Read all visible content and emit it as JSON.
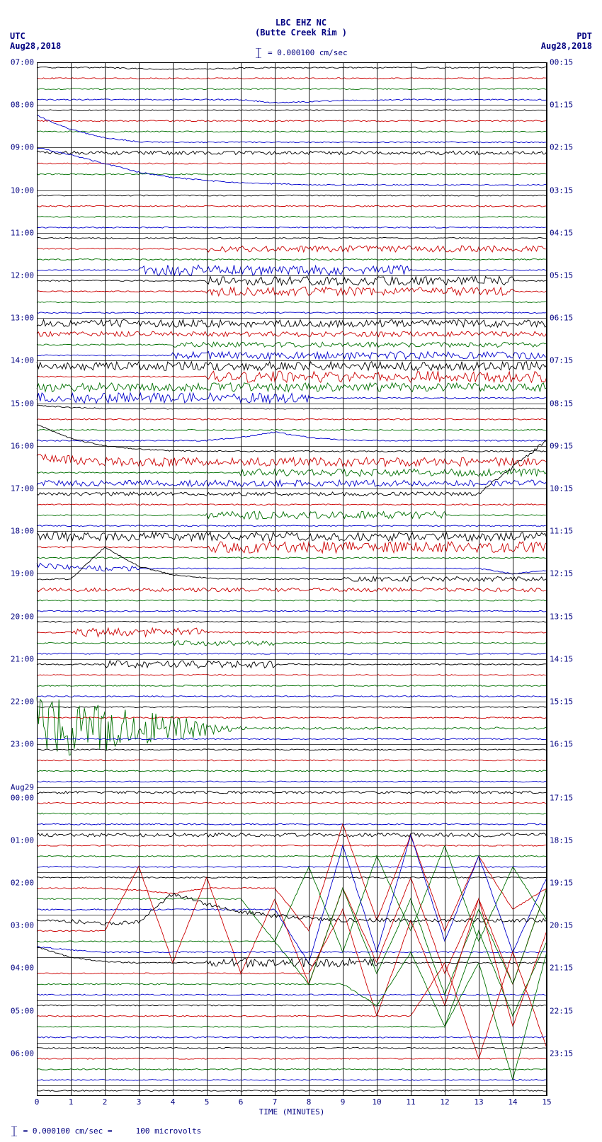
{
  "header": {
    "station": "LBC EHZ NC",
    "location": "(Butte Creek Rim )",
    "scale_text": "= 0.000100 cm/sec"
  },
  "timezones": {
    "left": "UTC",
    "right": "PDT"
  },
  "dates": {
    "left": "Aug28,2018",
    "right": "Aug28,2018"
  },
  "footer": {
    "scale": "= 0.000100 cm/sec =",
    "microvolts": "100 microvolts"
  },
  "x_axis": {
    "title": "TIME (MINUTES)",
    "ticks": [
      "0",
      "1",
      "2",
      "3",
      "4",
      "5",
      "6",
      "7",
      "8",
      "9",
      "10",
      "11",
      "12",
      "13",
      "14",
      "15"
    ]
  },
  "left_labels": [
    "07:00",
    "",
    "",
    "",
    "08:00",
    "",
    "",
    "",
    "09:00",
    "",
    "",
    "",
    "10:00",
    "",
    "",
    "",
    "11:00",
    "",
    "",
    "",
    "12:00",
    "",
    "",
    "",
    "13:00",
    "",
    "",
    "",
    "14:00",
    "",
    "",
    "",
    "15:00",
    "",
    "",
    "",
    "16:00",
    "",
    "",
    "",
    "17:00",
    "",
    "",
    "",
    "18:00",
    "",
    "",
    "",
    "19:00",
    "",
    "",
    "",
    "20:00",
    "",
    "",
    "",
    "21:00",
    "",
    "",
    "",
    "22:00",
    "",
    "",
    "",
    "23:00",
    "",
    "",
    "",
    "Aug29",
    "00:00",
    "",
    "",
    "",
    "01:00",
    "",
    "",
    "",
    "02:00",
    "",
    "",
    "",
    "03:00",
    "",
    "",
    "",
    "04:00",
    "",
    "",
    "",
    "05:00",
    "",
    "",
    "",
    "06:00",
    "",
    "",
    ""
  ],
  "right_labels": [
    "00:15",
    "",
    "",
    "",
    "01:15",
    "",
    "",
    "",
    "02:15",
    "",
    "",
    "",
    "03:15",
    "",
    "",
    "",
    "04:15",
    "",
    "",
    "",
    "05:15",
    "",
    "",
    "",
    "06:15",
    "",
    "",
    "",
    "07:15",
    "",
    "",
    "",
    "08:15",
    "",
    "",
    "",
    "09:15",
    "",
    "",
    "",
    "10:15",
    "",
    "",
    "",
    "11:15",
    "",
    "",
    "",
    "12:15",
    "",
    "",
    "",
    "13:15",
    "",
    "",
    "",
    "14:15",
    "",
    "",
    "",
    "15:15",
    "",
    "",
    "",
    "16:15",
    "",
    "",
    "",
    "",
    "17:15",
    "",
    "",
    "",
    "18:15",
    "",
    "",
    "",
    "19:15",
    "",
    "",
    "",
    "20:15",
    "",
    "",
    "",
    "21:15",
    "",
    "",
    "",
    "22:15",
    "",
    "",
    "",
    "23:15",
    "",
    "",
    ""
  ],
  "n_traces": 97,
  "trace_colors": [
    "#000000",
    "#cc0000",
    "#007000",
    "#0000cc"
  ],
  "background_color": "#ffffff",
  "grid_color": "#000000",
  "title_color": "#000080",
  "label_color": "#000080",
  "traces": [
    {
      "i": 0,
      "amp": 0.2,
      "noise": 0.05,
      "drift": [
        0,
        0,
        0,
        0.1,
        0.15,
        0.12,
        0.05,
        0,
        0,
        0,
        0,
        0,
        0,
        0,
        0,
        0
      ]
    },
    {
      "i": 1,
      "amp": 0.1,
      "noise": 0.05
    },
    {
      "i": 2,
      "amp": 0.1,
      "noise": 0.05
    },
    {
      "i": 3,
      "amp": 0.1,
      "noise": 0.05,
      "drift": [
        0,
        0,
        0,
        0,
        0,
        0,
        0,
        0.3,
        0.2,
        0.1,
        0.05,
        0,
        0,
        0,
        0,
        0
      ]
    },
    {
      "i": 4,
      "amp": 0.1,
      "noise": 0.05
    },
    {
      "i": 5,
      "amp": 0.1,
      "noise": 0.05
    },
    {
      "i": 6,
      "amp": 0.1,
      "noise": 0.05
    },
    {
      "i": 7,
      "amp": 0.1,
      "noise": 0.05,
      "drift": [
        -2.5,
        -1.2,
        -0.4,
        -0.05,
        0,
        0,
        0,
        0,
        0,
        0,
        0,
        0,
        0,
        0,
        0,
        0
      ]
    },
    {
      "i": 8,
      "amp": 0.3,
      "noise": 0.15
    },
    {
      "i": 9,
      "amp": 0.1,
      "noise": 0.05
    },
    {
      "i": 10,
      "amp": 0.1,
      "noise": 0.05
    },
    {
      "i": 11,
      "amp": 0.1,
      "noise": 0.05,
      "drift": [
        -3.5,
        -2.8,
        -2.0,
        -1.2,
        -0.7,
        -0.4,
        -0.2,
        -0.1,
        0,
        0,
        0,
        0,
        0,
        0,
        0,
        0
      ]
    },
    {
      "i": 12,
      "amp": 0.1,
      "noise": 0.05
    },
    {
      "i": 13,
      "amp": 0.1,
      "noise": 0.05
    },
    {
      "i": 14,
      "amp": 0.1,
      "noise": 0.05
    },
    {
      "i": 15,
      "amp": 0.1,
      "noise": 0.05
    },
    {
      "i": 16,
      "amp": 0.1,
      "noise": 0.05
    },
    {
      "i": 17,
      "amp": 0.3,
      "noise": 0.25,
      "seg": [
        5,
        15
      ]
    },
    {
      "i": 18,
      "amp": 0.1,
      "noise": 0.05
    },
    {
      "i": 19,
      "amp": 0.5,
      "noise": 0.4,
      "seg": [
        3,
        11
      ]
    },
    {
      "i": 20,
      "amp": 0.4,
      "noise": 0.35,
      "seg": [
        5,
        14
      ]
    },
    {
      "i": 21,
      "amp": 0.4,
      "noise": 0.35,
      "seg": [
        5,
        14
      ]
    },
    {
      "i": 22,
      "amp": 0.1,
      "noise": 0.05
    },
    {
      "i": 23,
      "amp": 0.1,
      "noise": 0.05
    },
    {
      "i": 24,
      "amp": 0.4,
      "noise": 0.3,
      "seg": [
        0,
        15
      ]
    },
    {
      "i": 25,
      "amp": 0.3,
      "noise": 0.2,
      "seg": [
        0,
        15
      ]
    },
    {
      "i": 26,
      "amp": 0.3,
      "noise": 0.2,
      "seg": [
        4,
        15
      ]
    },
    {
      "i": 27,
      "amp": 0.4,
      "noise": 0.3,
      "seg": [
        4,
        15
      ]
    },
    {
      "i": 28,
      "amp": 0.4,
      "noise": 0.35,
      "seg": [
        0,
        15
      ]
    },
    {
      "i": 29,
      "amp": 0.5,
      "noise": 0.45,
      "seg": [
        5,
        15
      ]
    },
    {
      "i": 30,
      "amp": 0.4,
      "noise": 0.35,
      "seg": [
        0,
        15
      ]
    },
    {
      "i": 31,
      "amp": 0.5,
      "noise": 0.4,
      "seg": [
        0,
        8
      ]
    },
    {
      "i": 32,
      "amp": 0.1,
      "noise": 0.05,
      "drift": [
        -0.3,
        -0.1,
        0,
        0,
        0,
        0,
        0,
        0,
        0,
        0,
        0,
        0,
        0,
        0,
        0,
        0
      ]
    },
    {
      "i": 33,
      "amp": 0.1,
      "noise": 0.05
    },
    {
      "i": 34,
      "amp": 0.1,
      "noise": 0.05
    },
    {
      "i": 35,
      "amp": 0.1,
      "noise": 0.05,
      "drift": [
        0,
        0,
        0,
        0,
        0,
        0,
        -0.3,
        -0.8,
        -0.3,
        -0.05,
        0,
        0,
        0,
        0,
        0,
        0
      ]
    },
    {
      "i": 36,
      "amp": 0.1,
      "noise": 0.05,
      "drift": [
        -2.5,
        -1.2,
        -0.5,
        -0.2,
        -0.05,
        0,
        0,
        0,
        0,
        0,
        0,
        0,
        0,
        0,
        0,
        0
      ]
    },
    {
      "i": 37,
      "amp": 0.4,
      "noise": 0.35,
      "seg": [
        0,
        15
      ],
      "drift": [
        -0.5,
        -0.2,
        0,
        0,
        0,
        0,
        0,
        0,
        0,
        0,
        0,
        0,
        0,
        0,
        0,
        0
      ]
    },
    {
      "i": 38,
      "amp": 0.4,
      "noise": 0.3,
      "seg": [
        6,
        15
      ]
    },
    {
      "i": 39,
      "amp": 0.3,
      "noise": 0.25,
      "seg": [
        0,
        15
      ]
    },
    {
      "i": 40,
      "amp": 0.2,
      "noise": 0.15,
      "drift": [
        0,
        0,
        0,
        0,
        0,
        0,
        0,
        0,
        0,
        0,
        0,
        0,
        0,
        0,
        -2.5,
        -5
      ]
    },
    {
      "i": 41,
      "amp": 0.1,
      "noise": 0.05
    },
    {
      "i": 42,
      "amp": 0.4,
      "noise": 0.3,
      "seg": [
        5,
        12
      ]
    },
    {
      "i": 43,
      "amp": 0.1,
      "noise": 0.05
    },
    {
      "i": 44,
      "amp": 0.4,
      "noise": 0.35,
      "seg": [
        0,
        15
      ]
    },
    {
      "i": 45,
      "amp": 0.5,
      "noise": 0.45,
      "seg": [
        5,
        15
      ]
    },
    {
      "i": 46,
      "amp": 0.1,
      "noise": 0.05
    },
    {
      "i": 47,
      "amp": 0.3,
      "noise": 0.2,
      "seg": [
        0,
        3
      ],
      "drift": [
        -0.3,
        -0.1,
        0,
        0,
        0,
        0,
        0,
        0,
        0,
        0,
        0,
        0,
        0,
        0,
        0.5,
        0.2
      ]
    },
    {
      "i": 48,
      "amp": 0.3,
      "noise": 0.2,
      "seg": [
        9,
        15
      ],
      "drift": [
        0,
        0,
        -3,
        -1.2,
        -0.4,
        -0.1,
        0,
        0,
        0,
        0,
        0,
        0,
        0,
        0,
        0,
        0
      ]
    },
    {
      "i": 49,
      "amp": 0.2,
      "noise": 0.15
    },
    {
      "i": 50,
      "amp": 0.1,
      "noise": 0.05
    },
    {
      "i": 51,
      "amp": 0.1,
      "noise": 0.05
    },
    {
      "i": 52,
      "amp": 0.1,
      "noise": 0.05
    },
    {
      "i": 53,
      "amp": 0.4,
      "noise": 0.35,
      "seg": [
        1,
        5
      ]
    },
    {
      "i": 54,
      "amp": 0.3,
      "noise": 0.2,
      "seg": [
        4,
        7
      ]
    },
    {
      "i": 55,
      "amp": 0.1,
      "noise": 0.05
    },
    {
      "i": 56,
      "amp": 0.4,
      "noise": 0.3,
      "seg": [
        2,
        7
      ]
    },
    {
      "i": 57,
      "amp": 0.1,
      "noise": 0.05
    },
    {
      "i": 58,
      "amp": 0.1,
      "noise": 0.05
    },
    {
      "i": 59,
      "amp": 0.1,
      "noise": 0.05
    },
    {
      "i": 60,
      "amp": 0.1,
      "noise": 0.05
    },
    {
      "i": 61,
      "amp": 0.1,
      "noise": 0.05
    },
    {
      "i": 62,
      "amp": 2.0,
      "noise": 1.8,
      "seg": [
        2,
        6
      ],
      "decay": true
    },
    {
      "i": 63,
      "amp": 0.1,
      "noise": 0.05
    },
    {
      "i": 64,
      "amp": 0.1,
      "noise": 0.05
    },
    {
      "i": 65,
      "amp": 0.1,
      "noise": 0.05
    },
    {
      "i": 66,
      "amp": 0.1,
      "noise": 0.05
    },
    {
      "i": 67,
      "amp": 0.1,
      "noise": 0.05
    },
    {
      "i": 68,
      "amp": 0.2,
      "noise": 0.1
    },
    {
      "i": 69,
      "amp": 0.1,
      "noise": 0.05
    },
    {
      "i": 70,
      "amp": 0.1,
      "noise": 0.05
    },
    {
      "i": 71,
      "amp": 0.1,
      "noise": 0.05
    },
    {
      "i": 72,
      "amp": 0.2,
      "noise": 0.15
    },
    {
      "i": 73,
      "amp": 0.1,
      "noise": 0.05
    },
    {
      "i": 74,
      "amp": 0.1,
      "noise": 0.05
    },
    {
      "i": 75,
      "amp": 0.1,
      "noise": 0.05
    },
    {
      "i": 76,
      "amp": 0.1,
      "noise": 0.05
    },
    {
      "i": 77,
      "amp": 0.1,
      "noise": 0.05,
      "bigwave": [
        0,
        0,
        0,
        0.2,
        0.5,
        0,
        0,
        0,
        4,
        -6,
        3,
        -5,
        4,
        -3,
        2,
        0
      ]
    },
    {
      "i": 78,
      "amp": 0.1,
      "noise": 0.05,
      "bigwave": [
        0,
        0,
        0,
        0,
        0,
        0,
        0,
        4,
        -3,
        5,
        -4,
        3,
        -5,
        4,
        -3,
        2
      ]
    },
    {
      "i": 79,
      "amp": 0.1,
      "noise": 0.05,
      "bigwave": [
        0,
        0,
        0,
        0,
        0,
        0,
        0,
        0,
        5,
        -6,
        4,
        -7,
        3,
        -5,
        4,
        -3
      ]
    },
    {
      "i": 80,
      "amp": 0.2,
      "noise": 0.15,
      "drift": [
        0,
        0.1,
        0.3,
        0.2,
        -2.5,
        -1.5,
        -0.8,
        -0.4,
        -0.2,
        0,
        0,
        0,
        0,
        0,
        0,
        0
      ]
    },
    {
      "i": 81,
      "amp": 0.1,
      "noise": 0.05,
      "bigwave": [
        0,
        0,
        0,
        -6,
        3,
        -5,
        4,
        -3,
        5,
        -4,
        3,
        -5,
        4,
        -3,
        5,
        -4
      ]
    },
    {
      "i": 82,
      "amp": 0.1,
      "noise": 0.05,
      "bigwave": [
        0,
        0,
        0,
        0,
        0,
        0,
        0,
        0,
        4,
        -5,
        3,
        -4,
        5,
        -3,
        4,
        -5
      ]
    },
    {
      "i": 83,
      "amp": 0.1,
      "noise": 0.05,
      "drift": [
        -0.5,
        -0.2,
        0,
        0,
        0,
        0,
        0,
        0,
        0,
        0,
        0,
        0,
        0,
        0,
        0,
        0
      ]
    },
    {
      "i": 84,
      "amp": 0.4,
      "noise": 0.35,
      "seg": [
        5,
        10
      ],
      "drift": [
        -1.5,
        -0.5,
        -0.1,
        0,
        0,
        0,
        0,
        0,
        0,
        0,
        0,
        0,
        0,
        0,
        0,
        0
      ]
    },
    {
      "i": 85,
      "amp": 0.1,
      "noise": 0.05,
      "bigwave": [
        0,
        0,
        0,
        0,
        0,
        0,
        0,
        0,
        0,
        -6,
        4,
        -5,
        3,
        -7,
        5,
        -4
      ]
    },
    {
      "i": 86,
      "amp": 0.1,
      "noise": 0.05,
      "bigwave": [
        0,
        0,
        0,
        0,
        0,
        0,
        0,
        0,
        0,
        0,
        2,
        -3,
        4,
        -5,
        3,
        -4
      ]
    },
    {
      "i": 87,
      "amp": 0.1,
      "noise": 0.05
    },
    {
      "i": 88,
      "amp": 0.1,
      "noise": 0.05
    },
    {
      "i": 89,
      "amp": 0.1,
      "noise": 0.05,
      "bigwave": [
        0,
        0,
        0,
        0,
        0,
        0,
        0,
        0,
        0,
        0,
        0,
        0,
        -5,
        4,
        -6,
        3
      ]
    },
    {
      "i": 90,
      "amp": 0.1,
      "noise": 0.05,
      "bigwave": [
        0,
        0,
        0,
        0,
        0,
        0,
        0,
        0,
        0,
        0,
        0,
        0,
        0,
        -6,
        5,
        -7
      ]
    },
    {
      "i": 91,
      "amp": 0.1,
      "noise": 0.05
    },
    {
      "i": 92,
      "amp": 0.1,
      "noise": 0.05
    },
    {
      "i": 93,
      "amp": 0.1,
      "noise": 0.05
    },
    {
      "i": 94,
      "amp": 0.1,
      "noise": 0.05
    },
    {
      "i": 95,
      "amp": 0.1,
      "noise": 0.05
    },
    {
      "i": 96,
      "amp": 0.1,
      "noise": 0.05
    }
  ]
}
